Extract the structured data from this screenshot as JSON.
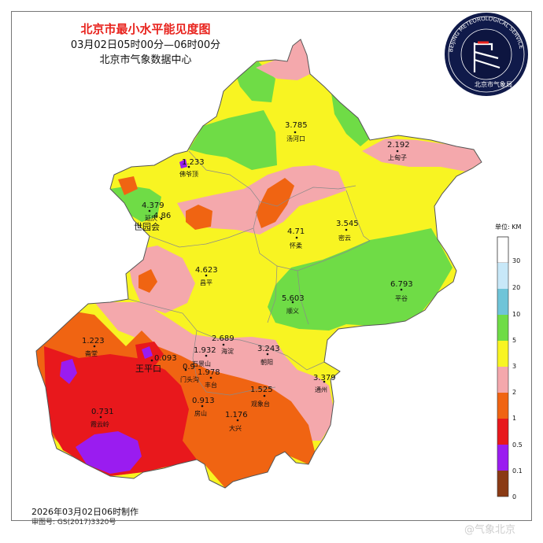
{
  "header": {
    "title": "北京市最小水平能见度图",
    "time_range": "03月02日05时00分—06时00分",
    "agency": "北京市气象数据中心"
  },
  "logo": {
    "ring_text": "BEIJING METEOROLOGICAL SERVICE",
    "name_text": "北京市气象局",
    "fill_color": "#101a4a"
  },
  "legend": {
    "unit": "单位: KM",
    "bands": [
      {
        "label": "30",
        "color": "#ffffff"
      },
      {
        "label": "20",
        "color": "#c8e8f8"
      },
      {
        "label": "10",
        "color": "#6fc4d8"
      },
      {
        "label": "5",
        "color": "#6fdc46"
      },
      {
        "label": "3",
        "color": "#f8f422"
      },
      {
        "label": "2",
        "color": "#f4a8ac"
      },
      {
        "label": "1",
        "color": "#f06412"
      },
      {
        "label": "0.5",
        "color": "#e8181c"
      },
      {
        "label": "0.1",
        "color": "#9a1cf0"
      },
      {
        "label": "0",
        "color": "#8a3a14"
      }
    ]
  },
  "stations": [
    {
      "value": "3.785",
      "name": "汤河口"
    },
    {
      "value": "2.192",
      "name": "上甸子"
    },
    {
      "value": "1.233",
      "name": "佛爷顶"
    },
    {
      "value": "4.379",
      "name": ""
    },
    {
      "value": "4.86",
      "name": "延庆"
    },
    {
      "value": "",
      "name": "世园会"
    },
    {
      "value": "3.545",
      "name": "密云"
    },
    {
      "value": "4.71",
      "name": "怀柔"
    },
    {
      "value": "4.623",
      "name": "昌平"
    },
    {
      "value": "6.793",
      "name": "平谷"
    },
    {
      "value": "5.603",
      "name": "顺义"
    },
    {
      "value": "2.689",
      "name": "海淀"
    },
    {
      "value": "3.243",
      "name": "朝阳"
    },
    {
      "value": "1.932",
      "name": "石景山"
    },
    {
      "value": "1.223",
      "name": "斋堂"
    },
    {
      "value": "0.093",
      "name": ""
    },
    {
      "value": "",
      "name": "王平口"
    },
    {
      "value": "0.9",
      "name": "门头沟"
    },
    {
      "value": "1.978",
      "name": "丰台"
    },
    {
      "value": "3.379",
      "name": "通州"
    },
    {
      "value": "1.525",
      "name": "观象台"
    },
    {
      "value": "0.913",
      "name": "房山"
    },
    {
      "value": "0.731",
      "name": "霞云岭"
    },
    {
      "value": "1.176",
      "name": "大兴"
    }
  ],
  "footer": {
    "made": "2026年03月02日06时制作",
    "approval": "审图号: GS(2017)3320号",
    "watermark": "@气象北京"
  }
}
